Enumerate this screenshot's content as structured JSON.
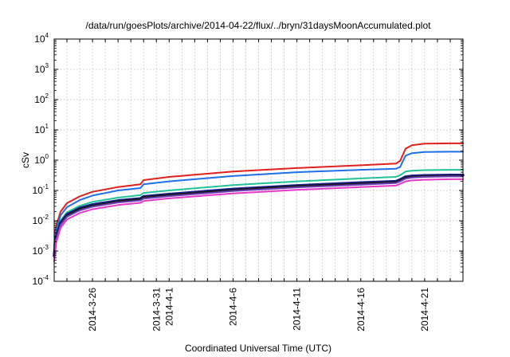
{
  "chart_data": {
    "type": "line",
    "title": "/data/run/goesPlots/archive/2014-04-22/flux/../bryn/31daysMoonAccumulated.plot",
    "xlabel": "Coordinated Universal Time (UTC)",
    "ylabel": "cSv",
    "y_scale": "log",
    "ylim_exponents": [
      -4,
      4
    ],
    "y_tick_base": "10",
    "y_tick_exponents": [
      "-4",
      "-3",
      "-2",
      "-1",
      "0",
      "1",
      "2",
      "3",
      "4"
    ],
    "xlim": [
      "2014-03-23",
      "2014-04-24"
    ],
    "x_ticks": [
      {
        "date": "2014-03-26",
        "label": "2014-3-26"
      },
      {
        "date": "2014-03-31",
        "label": "2014-3-31"
      },
      {
        "date": "2014-04-01",
        "label": "2014-4-1"
      },
      {
        "date": "2014-04-06",
        "label": "2014-4-6"
      },
      {
        "date": "2014-04-11",
        "label": "2014-4-11"
      },
      {
        "date": "2014-04-16",
        "label": "2014-4-16"
      },
      {
        "date": "2014-04-21",
        "label": "2014-4-21"
      }
    ],
    "grid": true,
    "grid_x": [
      "2014-03-24",
      "2014-03-25",
      "2014-03-26",
      "2014-03-27",
      "2014-03-28",
      "2014-03-29",
      "2014-03-30",
      "2014-03-31",
      "2014-04-01",
      "2014-04-02",
      "2014-04-03",
      "2014-04-04",
      "2014-04-05",
      "2014-04-06",
      "2014-04-07",
      "2014-04-08",
      "2014-04-09",
      "2014-04-10",
      "2014-04-11",
      "2014-04-12",
      "2014-04-13",
      "2014-04-14",
      "2014-04-15",
      "2014-04-16",
      "2014-04-17",
      "2014-04-18",
      "2014-04-19",
      "2014-04-20",
      "2014-04-21",
      "2014-04-22",
      "2014-04-23"
    ],
    "x": [
      "2014-03-23T00:00",
      "2014-03-23T03:00",
      "2014-03-23T12:00",
      "2014-03-24T00:00",
      "2014-03-25T00:00",
      "2014-03-26T00:00",
      "2014-03-28T00:00",
      "2014-03-29T18:00",
      "2014-03-30T00:00",
      "2014-04-01T00:00",
      "2014-04-06T00:00",
      "2014-04-11T00:00",
      "2014-04-16T00:00",
      "2014-04-18T18:00",
      "2014-04-19T02:00",
      "2014-04-19T12:00",
      "2014-04-20T00:00",
      "2014-04-21T00:00",
      "2014-04-23T00:00",
      "2014-04-24T00:00"
    ],
    "series": [
      {
        "color": "#e0201c",
        "width": 2,
        "values": [
          0.0015,
          0.006,
          0.02,
          0.038,
          0.064,
          0.09,
          0.13,
          0.16,
          0.22,
          0.28,
          0.42,
          0.55,
          0.68,
          0.77,
          0.95,
          2.4,
          3.1,
          3.5,
          3.6,
          3.6
        ]
      },
      {
        "color": "#1f6fe8",
        "width": 2,
        "values": [
          0.0011,
          0.0045,
          0.015,
          0.028,
          0.048,
          0.068,
          0.1,
          0.12,
          0.16,
          0.2,
          0.3,
          0.4,
          0.48,
          0.52,
          0.6,
          1.4,
          1.7,
          1.85,
          1.9,
          1.9
        ]
      },
      {
        "color": "#22c29a",
        "width": 2,
        "values": [
          0.0008,
          0.003,
          0.01,
          0.019,
          0.031,
          0.042,
          0.058,
          0.07,
          0.083,
          0.1,
          0.15,
          0.2,
          0.25,
          0.28,
          0.32,
          0.42,
          0.45,
          0.47,
          0.48,
          0.48
        ]
      },
      {
        "color": "#1a1a8a",
        "width": 3.5,
        "values": [
          0.0007,
          0.0026,
          0.0085,
          0.016,
          0.026,
          0.034,
          0.046,
          0.054,
          0.063,
          0.075,
          0.11,
          0.145,
          0.18,
          0.2,
          0.23,
          0.28,
          0.3,
          0.31,
          0.32,
          0.32
        ]
      },
      {
        "color": "#1a1a1a",
        "width": 2,
        "values": [
          0.00068,
          0.0025,
          0.008,
          0.015,
          0.025,
          0.032,
          0.044,
          0.052,
          0.06,
          0.072,
          0.105,
          0.14,
          0.17,
          0.19,
          0.22,
          0.265,
          0.285,
          0.3,
          0.31,
          0.31
        ]
      },
      {
        "color": "#6a3fb5",
        "width": 2,
        "values": [
          0.00062,
          0.0022,
          0.0072,
          0.0135,
          0.022,
          0.029,
          0.04,
          0.047,
          0.054,
          0.065,
          0.095,
          0.127,
          0.155,
          0.175,
          0.2,
          0.245,
          0.265,
          0.28,
          0.29,
          0.29
        ]
      },
      {
        "color": "#e639c8",
        "width": 2,
        "values": [
          0.00045,
          0.0017,
          0.0058,
          0.011,
          0.018,
          0.024,
          0.033,
          0.039,
          0.045,
          0.055,
          0.08,
          0.105,
          0.13,
          0.145,
          0.165,
          0.2,
          0.215,
          0.225,
          0.235,
          0.235
        ]
      }
    ]
  }
}
